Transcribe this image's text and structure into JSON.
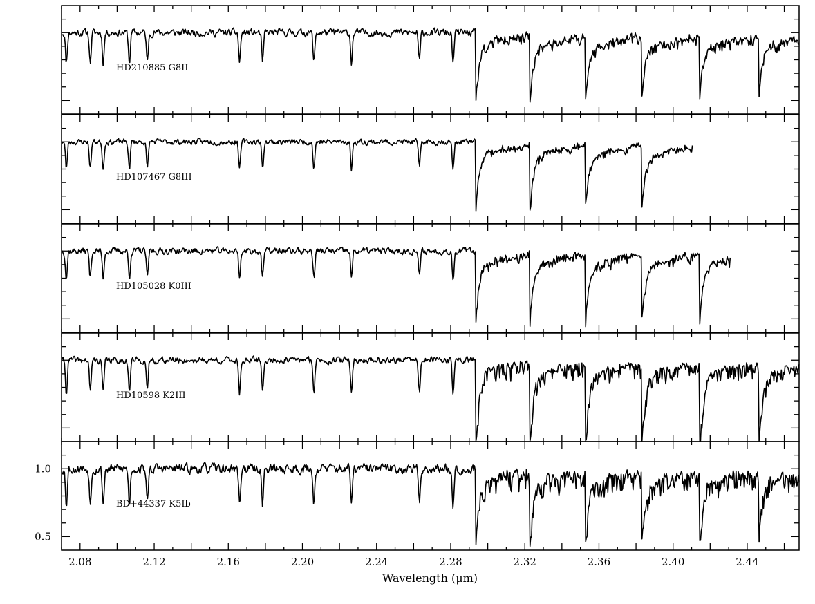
{
  "chart_data": {
    "type": "line",
    "xlabel": "Wavelength (μm)",
    "xlim": [
      2.07,
      2.468
    ],
    "x_ticks": [
      "2.08",
      "2.12",
      "2.16",
      "2.20",
      "2.24",
      "2.28",
      "2.32",
      "2.36",
      "2.40",
      "2.44"
    ],
    "ylim": [
      0.4,
      1.2
    ],
    "y_ticks": [
      "0.5",
      "1.0"
    ],
    "continuum_level": 1.0,
    "co_bandheads_um": [
      2.2935,
      2.3227,
      2.3525,
      2.3829,
      2.4142,
      2.4461
    ],
    "line_features_um": [
      2.0726,
      2.0855,
      2.0925,
      2.1066,
      2.1163,
      2.1661,
      2.1785,
      2.2062,
      2.2265,
      2.2631,
      2.2813
    ],
    "panels": [
      {
        "label": "HD210885 G8II",
        "x_range": [
          2.07,
          2.468
        ],
        "co_depth": 0.42,
        "line_depth": 0.22,
        "noise": 0.045,
        "jitter": 0.05,
        "seed": 11
      },
      {
        "label": "HD107467 G8III",
        "x_range": [
          2.07,
          2.4105
        ],
        "co_depth": 0.42,
        "line_depth": 0.2,
        "noise": 0.035,
        "jitter": 0.04,
        "seed": 23
      },
      {
        "label": "HD105028 K0III",
        "x_range": [
          2.07,
          2.431
        ],
        "co_depth": 0.44,
        "line_depth": 0.2,
        "noise": 0.04,
        "jitter": 0.05,
        "seed": 37
      },
      {
        "label": "HD10598 K2III",
        "x_range": [
          2.07,
          2.468
        ],
        "co_depth": 0.6,
        "line_depth": 0.24,
        "noise": 0.04,
        "jitter": 0.1,
        "seed": 41
      },
      {
        "label": "BD+44337 K5Ib",
        "x_range": [
          2.07,
          2.468
        ],
        "co_depth": 0.48,
        "line_depth": 0.26,
        "noise": 0.06,
        "jitter": 0.12,
        "seed": 53
      }
    ]
  }
}
